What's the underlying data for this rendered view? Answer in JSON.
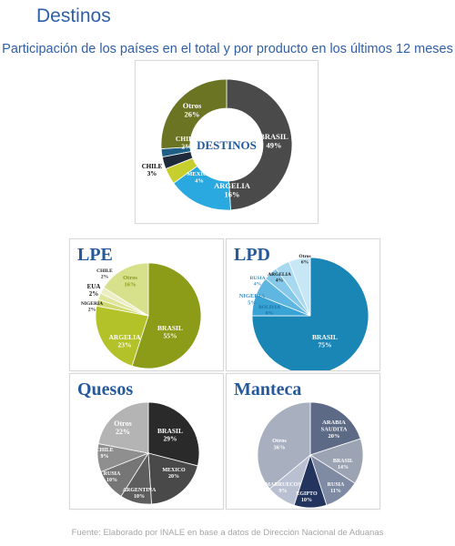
{
  "page": {
    "heading": "Destinos",
    "subtitle": "Participación de los países en el total y por producto en los últimos 12 meses",
    "footer": "Fuente: Elaborado por INALE en base a datos de Dirección Nacional de Aduanas"
  },
  "chart_data": [
    {
      "type": "donut",
      "title": "DESTINOS",
      "slices": [
        {
          "label": "BRASIL",
          "value": 49,
          "display": "49%",
          "color": "#4a4a4a"
        },
        {
          "label": "ARGELIA",
          "value": 16,
          "display": "16%",
          "color": "#29a9e0"
        },
        {
          "label": "MEXICO",
          "value": 4,
          "display": "4%",
          "color": "#c7cf2e"
        },
        {
          "label": "CHILE",
          "value": 3,
          "display": "3%",
          "color": "#1e2a3a"
        },
        {
          "label": "CHILE",
          "value": 2,
          "display": "2%",
          "color": "#1f5f86"
        },
        {
          "label": "Otros",
          "value": 26,
          "display": "26%",
          "color": "#6b7423"
        }
      ]
    },
    {
      "type": "pie",
      "title": "LPE",
      "slices": [
        {
          "label": "BRASIL",
          "value": 55,
          "display": "55%",
          "color": "#8c9c18"
        },
        {
          "label": "ARGELIA",
          "value": 23,
          "display": "23%",
          "color": "#b3c229"
        },
        {
          "label": "NIGERIA",
          "value": 2,
          "display": "2%",
          "color": "#d0d970"
        },
        {
          "label": "EUA",
          "value": 2,
          "display": "2%",
          "color": "#dfe59b"
        },
        {
          "label": "CHILE",
          "value": 2,
          "display": "2%",
          "color": "#eaeec2"
        },
        {
          "label": "Otros",
          "value": 16,
          "display": "16%",
          "color": "#d7e08a"
        }
      ]
    },
    {
      "type": "pie",
      "title": "LPD",
      "slices": [
        {
          "label": "BRASIL",
          "value": 75,
          "display": "75%",
          "color": "#1a86b5"
        },
        {
          "label": "BOLIVIA",
          "value": 6,
          "display": "6%",
          "color": "#3aa3d6"
        },
        {
          "label": "NIGERIA",
          "value": 5,
          "display": "5%",
          "color": "#5fb6e1"
        },
        {
          "label": "RUSIA",
          "value": 4,
          "display": "4%",
          "color": "#85c8ea"
        },
        {
          "label": "ARGELIA",
          "value": 4,
          "display": "4%",
          "color": "#a6d8f0"
        },
        {
          "label": "Otros",
          "value": 6,
          "display": "6%",
          "color": "#c8e7f6"
        }
      ]
    },
    {
      "type": "pie",
      "title": "Quesos",
      "slices": [
        {
          "label": "BRASIL",
          "value": 29,
          "display": "29%",
          "color": "#2a2a2a"
        },
        {
          "label": "MEXICO",
          "value": 20,
          "display": "20%",
          "color": "#494949"
        },
        {
          "label": "ARGENTINA",
          "value": 10,
          "display": "10%",
          "color": "#5e5e5e"
        },
        {
          "label": "RUSIA",
          "value": 10,
          "display": "10%",
          "color": "#767676"
        },
        {
          "label": "CHILE",
          "value": 9,
          "display": "9%",
          "color": "#8f8f8f"
        },
        {
          "label": "Otros",
          "value": 22,
          "display": "22%",
          "color": "#b4b4b4"
        }
      ]
    },
    {
      "type": "pie",
      "title": "Manteca",
      "slices": [
        {
          "label": "ARABIA SAUDITA",
          "value": 20,
          "display": "20%",
          "color": "#5d6a85"
        },
        {
          "label": "BRASIL",
          "value": 14,
          "display": "14%",
          "color": "#9ca3b3"
        },
        {
          "label": "RUSIA",
          "value": 11,
          "display": "11%",
          "color": "#7f8aa3"
        },
        {
          "label": "EGIPTO",
          "value": 10,
          "display": "10%",
          "color": "#23355e"
        },
        {
          "label": "MARRUECOS",
          "value": 9,
          "display": "9%",
          "color": "#b9c0d1"
        },
        {
          "label": "Otros",
          "value": 36,
          "display": "36%",
          "color": "#a8afbf"
        }
      ]
    }
  ]
}
